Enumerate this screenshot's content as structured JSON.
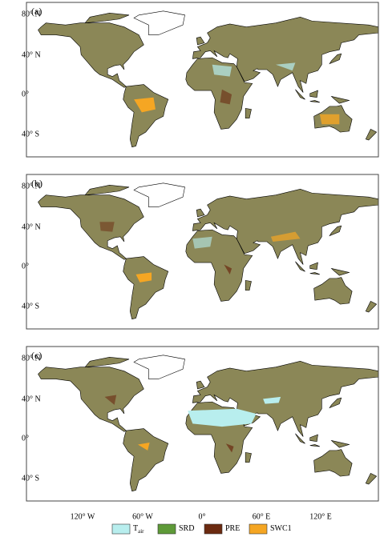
{
  "panels": [
    {
      "label": "(a)"
    },
    {
      "label": "(b)"
    },
    {
      "label": "(c)"
    }
  ],
  "lat_labels": [
    "80° N",
    "40° N",
    "0°",
    "40° S"
  ],
  "lon_labels": [
    "120° W",
    "60° W",
    "0°",
    "60° E",
    "120° E"
  ],
  "legend": [
    {
      "label": "T",
      "subscript": "air",
      "color": "#b8eeee"
    },
    {
      "label": "SRD",
      "color": "#5e9a38"
    },
    {
      "label": "PRE",
      "color": "#6b2a10"
    },
    {
      "label": "SWC1",
      "color": "#f5a623"
    }
  ]
}
